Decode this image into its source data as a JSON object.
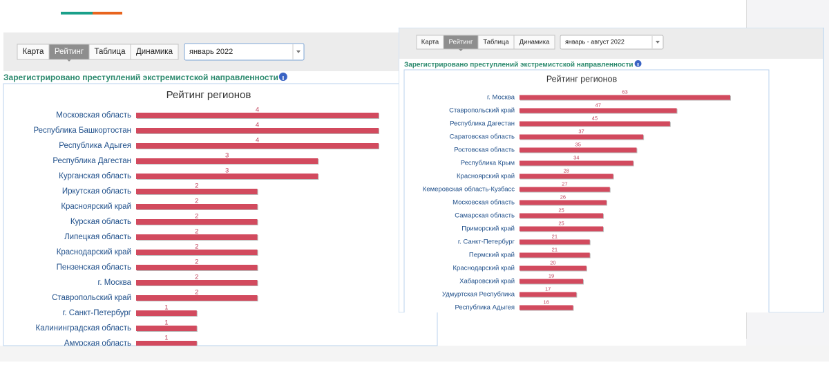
{
  "panels": [
    {
      "tabs": [
        "Карта",
        "Рейтинг",
        "Таблица",
        "Динамика"
      ],
      "active_tab": 1,
      "period": "январь 2022",
      "heading": "Зарегистрировано преступлений экстремистской направленности",
      "chart": {
        "type": "bar",
        "orientation": "horizontal",
        "title": "Рейтинг регионов",
        "color": "#d24a5e",
        "categories": [
          "Московская область",
          "Республика Башкортостан",
          "Республика Адыгея",
          "Республика Дагестан",
          "Курганская область",
          "Иркутская область",
          "Красноярский край",
          "Курская область",
          "Липецкая область",
          "Краснодарский край",
          "Пензенская область",
          "г. Москва",
          "Ставропольский край",
          "г. Санкт-Петербург",
          "Калининградская область",
          "Амурская область"
        ],
        "values": [
          4,
          4,
          4,
          3,
          3,
          2,
          2,
          2,
          2,
          2,
          2,
          2,
          2,
          1,
          1,
          1
        ]
      }
    },
    {
      "tabs": [
        "Карта",
        "Рейтинг",
        "Таблица",
        "Динамика"
      ],
      "active_tab": 1,
      "period": "январь - август 2022",
      "heading": "Зарегистрировано преступлений экстремистской направленности",
      "chart": {
        "type": "bar",
        "orientation": "horizontal",
        "title": "Рейтинг регионов",
        "color": "#d24a5e",
        "categories": [
          "г. Москва",
          "Ставропольский край",
          "Республика Дагестан",
          "Саратовская область",
          "Ростовская область",
          "Республика Крым",
          "Красноярский край",
          "Кемеровская область-Кузбасс",
          "Московская область",
          "Самарская область",
          "Приморский край",
          "г. Санкт-Петербург",
          "Пермский край",
          "Краснодарский край",
          "Хабаровский край",
          "Удмуртская Республика",
          "Республика Адыгея"
        ],
        "values": [
          63,
          47,
          45,
          37,
          35,
          34,
          28,
          27,
          26,
          25,
          25,
          21,
          21,
          20,
          19,
          17,
          16
        ]
      }
    }
  ]
}
